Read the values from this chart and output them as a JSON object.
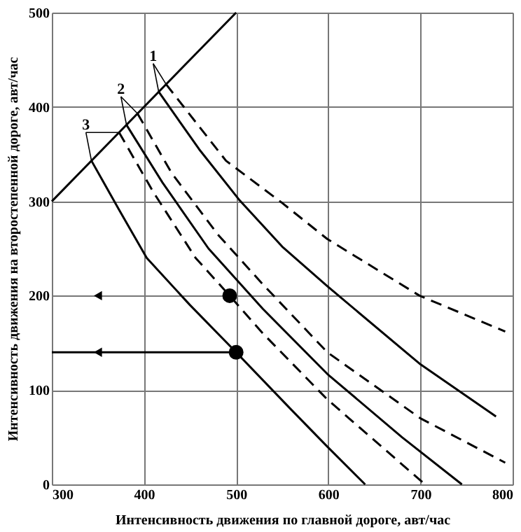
{
  "chart_data": {
    "type": "line",
    "xlabel": "Интенсивность движения по главной дороге, авт/час",
    "ylabel": "Интенсивность движения на второстепенной дороге, авт/час",
    "xlim": [
      300,
      800
    ],
    "ylim": [
      0,
      500
    ],
    "xticks": [
      300,
      400,
      500,
      600,
      700,
      800
    ],
    "yticks": [
      0,
      100,
      200,
      300,
      400,
      500
    ],
    "grid": true,
    "annotations": [
      {
        "text": "1",
        "x": 416,
        "y": 416
      },
      {
        "text": "2",
        "x": 381,
        "y": 381
      },
      {
        "text": "3",
        "x": 343,
        "y": 343
      }
    ],
    "series": [
      {
        "line_style": "solid",
        "color": "#000000",
        "x": [
          416,
          460,
          503,
          550,
          599,
          699,
          782
        ],
        "values": [
          416,
          355,
          302,
          252,
          210,
          128,
          72
        ]
      },
      {
        "line_style": "dashed",
        "color": "#000000",
        "x": [
          424,
          489,
          549,
          599,
          699,
          792
        ],
        "values": [
          424,
          343,
          299,
          260,
          200,
          162
        ]
      },
      {
        "line_style": "solid",
        "color": "#000000",
        "x": [
          381,
          420,
          470,
          529,
          599,
          680,
          745
        ],
        "values": [
          381,
          320,
          250,
          186,
          117,
          50,
          0
        ]
      },
      {
        "line_style": "dashed",
        "color": "#000000",
        "x": [
          393,
          430,
          480,
          529,
          599,
          700,
          792
        ],
        "values": [
          393,
          330,
          265,
          212,
          140,
          70,
          23
        ]
      },
      {
        "line_style": "solid",
        "color": "#000000",
        "x": [
          343,
          373,
          403,
          450,
          500,
          559,
          599,
          640
        ],
        "values": [
          343,
          291,
          240,
          190,
          140,
          80,
          40,
          0
        ]
      },
      {
        "line_style": "dashed",
        "color": "#000000",
        "x": [
          373,
          410,
          456,
          493,
          529,
          599,
          705
        ],
        "values": [
          373,
          310,
          240,
          200,
          160,
          90,
          0
        ]
      },
      {
        "line_style": "solid",
        "color": "#000000",
        "x": [
          300,
          500
        ],
        "values": [
          300,
          500
        ]
      },
      {
        "line_style": "solid",
        "color": "#000000",
        "x": [
          300,
          500
        ],
        "values": [
          140,
          140
        ]
      },
      {
        "type": "scatter",
        "marker": "circle",
        "color": "#000000",
        "x": [
          493,
          500
        ],
        "values": [
          200,
          140
        ]
      },
      {
        "type": "scatter",
        "marker": "triangle",
        "color": "#000000",
        "x": [
          350,
          350
        ],
        "values": [
          200,
          140
        ]
      }
    ]
  }
}
